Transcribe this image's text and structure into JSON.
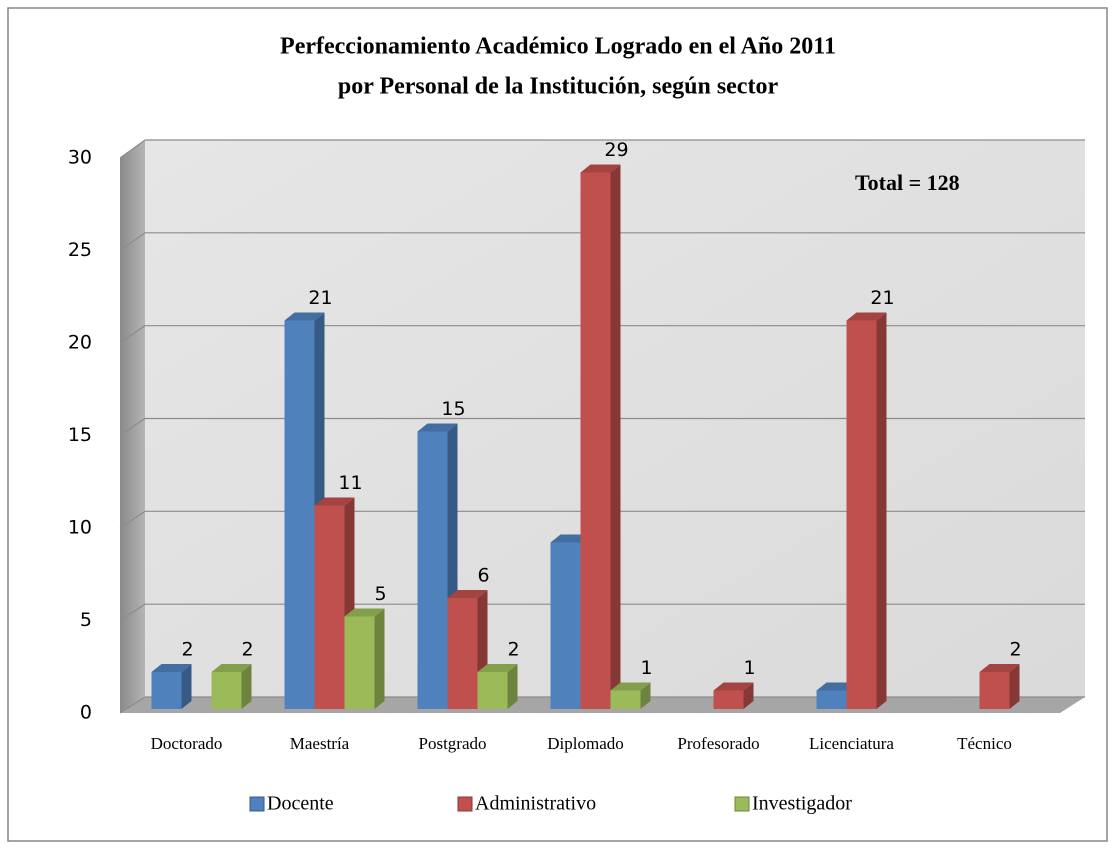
{
  "chart_data": {
    "type": "bar3d",
    "title": [
      "Perfeccionamiento  Académico Logrado en el Año 2011",
      "por Personal de la Institución, según sector"
    ],
    "annotation": "Total = 128",
    "categories": [
      "Doctorado",
      "Maestría",
      "Postgrado",
      "Diplomado",
      "Profesorado",
      "Licenciatura",
      "Técnico"
    ],
    "series": [
      {
        "name": "Docente",
        "color": "#4f81bd",
        "values": [
          2,
          21,
          15,
          9,
          null,
          1,
          null
        ]
      },
      {
        "name": "Administrativo",
        "color": "#c0504d",
        "values": [
          null,
          11,
          6,
          29,
          1,
          21,
          2
        ]
      },
      {
        "name": "Investigador",
        "color": "#9bbb59",
        "values": [
          2,
          5,
          2,
          1,
          null,
          null,
          null
        ]
      }
    ],
    "ylim": [
      0,
      30
    ],
    "yticks": [
      0,
      5,
      10,
      15,
      20,
      25,
      30
    ],
    "grid": true,
    "legend": "bottom"
  }
}
